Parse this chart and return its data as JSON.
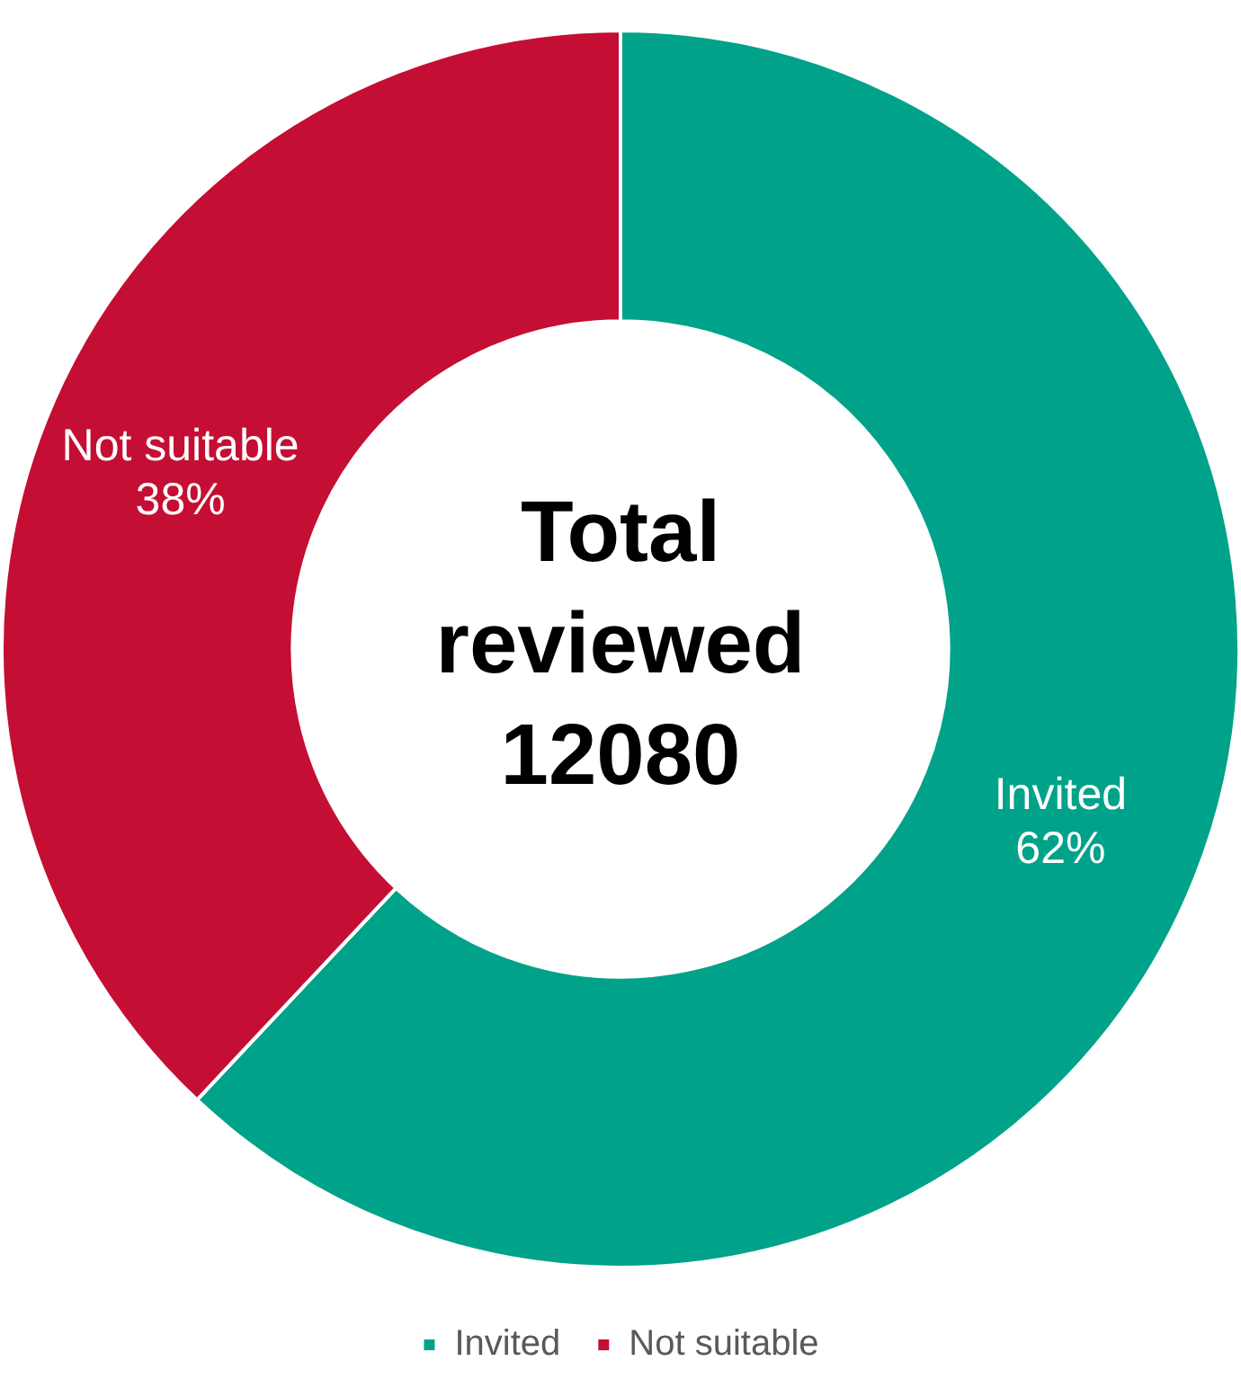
{
  "chart_data": {
    "type": "donut",
    "categories": [
      "Invited",
      "Not suitable"
    ],
    "values": [
      62,
      38
    ],
    "colors": [
      "#00a28a",
      "#c50e33"
    ],
    "value_labels": [
      "62%",
      "38%"
    ],
    "legend": "bottom",
    "annotations": [
      "Total reviewed 12080"
    ]
  }
}
